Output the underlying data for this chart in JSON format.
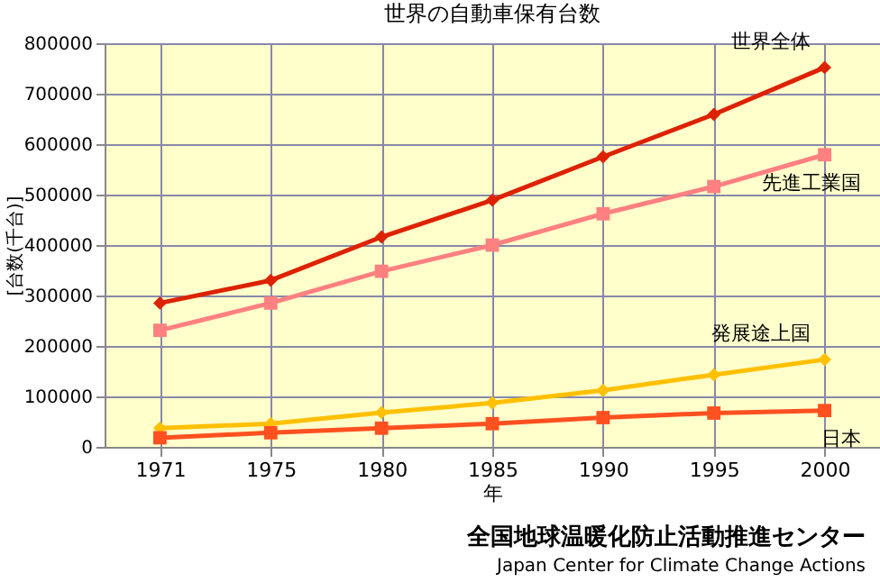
{
  "chart_data": {
    "type": "line",
    "title": "世界の自動車保有台数",
    "xlabel": "年",
    "ylabel": "[台数(千台)]",
    "categories": [
      "1971",
      "1975",
      "1980",
      "1985",
      "1990",
      "1995",
      "2000"
    ],
    "series": [
      {
        "name": "世界全体",
        "color": "#dd2200",
        "marker": "diamond",
        "values": [
          285000,
          330000,
          416000,
          489000,
          575000,
          659000,
          752000
        ]
      },
      {
        "name": "先進工業国",
        "color": "#ff8080",
        "marker": "square",
        "values": [
          231000,
          285000,
          348000,
          400000,
          462000,
          516000,
          579000
        ]
      },
      {
        "name": "発展途上国",
        "color": "#ffc000",
        "marker": "diamond",
        "values": [
          37000,
          46000,
          68000,
          87000,
          112000,
          143000,
          173000
        ]
      },
      {
        "name": "日本",
        "color": "#ff5020",
        "marker": "square",
        "values": [
          18000,
          28000,
          37000,
          46000,
          58000,
          67000,
          72000
        ]
      }
    ],
    "ylim": [
      0,
      800000
    ],
    "yticks": [
      0,
      100000,
      200000,
      300000,
      400000,
      500000,
      600000,
      700000,
      800000
    ],
    "grid": true,
    "legend": false,
    "line_style": "solid",
    "annotations": [
      "全国地球温暖化防止活動推進センター",
      "Japan Center for Climate Change Actions"
    ]
  }
}
